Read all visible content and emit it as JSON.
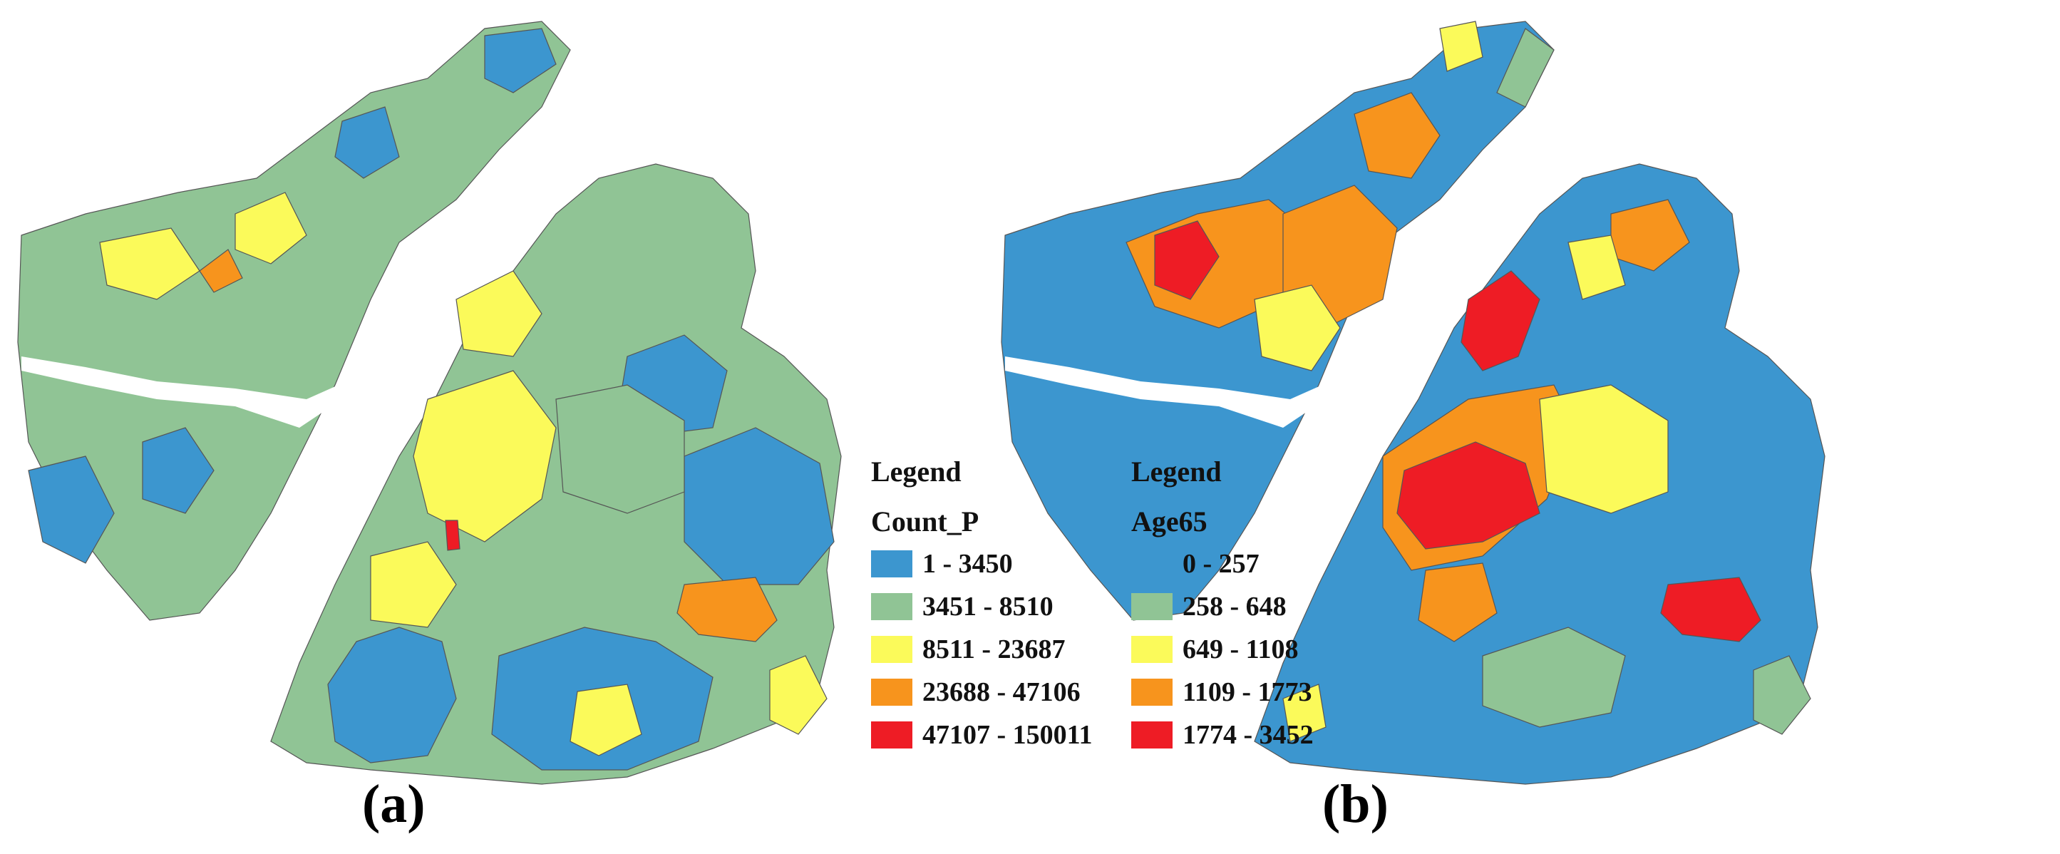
{
  "panels": [
    {
      "label": "(a)",
      "legend": {
        "title": "Legend",
        "field": "Count_P",
        "classes": [
          {
            "range": "1 - 3450",
            "color": "#3c96cf"
          },
          {
            "range": "3451 - 8510",
            "color": "#90c495"
          },
          {
            "range": "8511 - 23687",
            "color": "#fbfa5a"
          },
          {
            "range": "23688 - 47106",
            "color": "#f7941d"
          },
          {
            "range": "47107 - 150011",
            "color": "#ee1c25"
          }
        ]
      }
    },
    {
      "label": "(b)",
      "legend": {
        "title": "Legend",
        "field": "Age65",
        "classes": [
          {
            "range": "0 - 257",
            "color": "#3c96cf"
          },
          {
            "range": "258 - 648",
            "color": "#90c495"
          },
          {
            "range": "649 - 1108",
            "color": "#fbfa5a"
          },
          {
            "range": "1109 - 1773",
            "color": "#f7941d"
          },
          {
            "range": "1774 - 3452",
            "color": "#ee1c25"
          }
        ]
      }
    }
  ]
}
